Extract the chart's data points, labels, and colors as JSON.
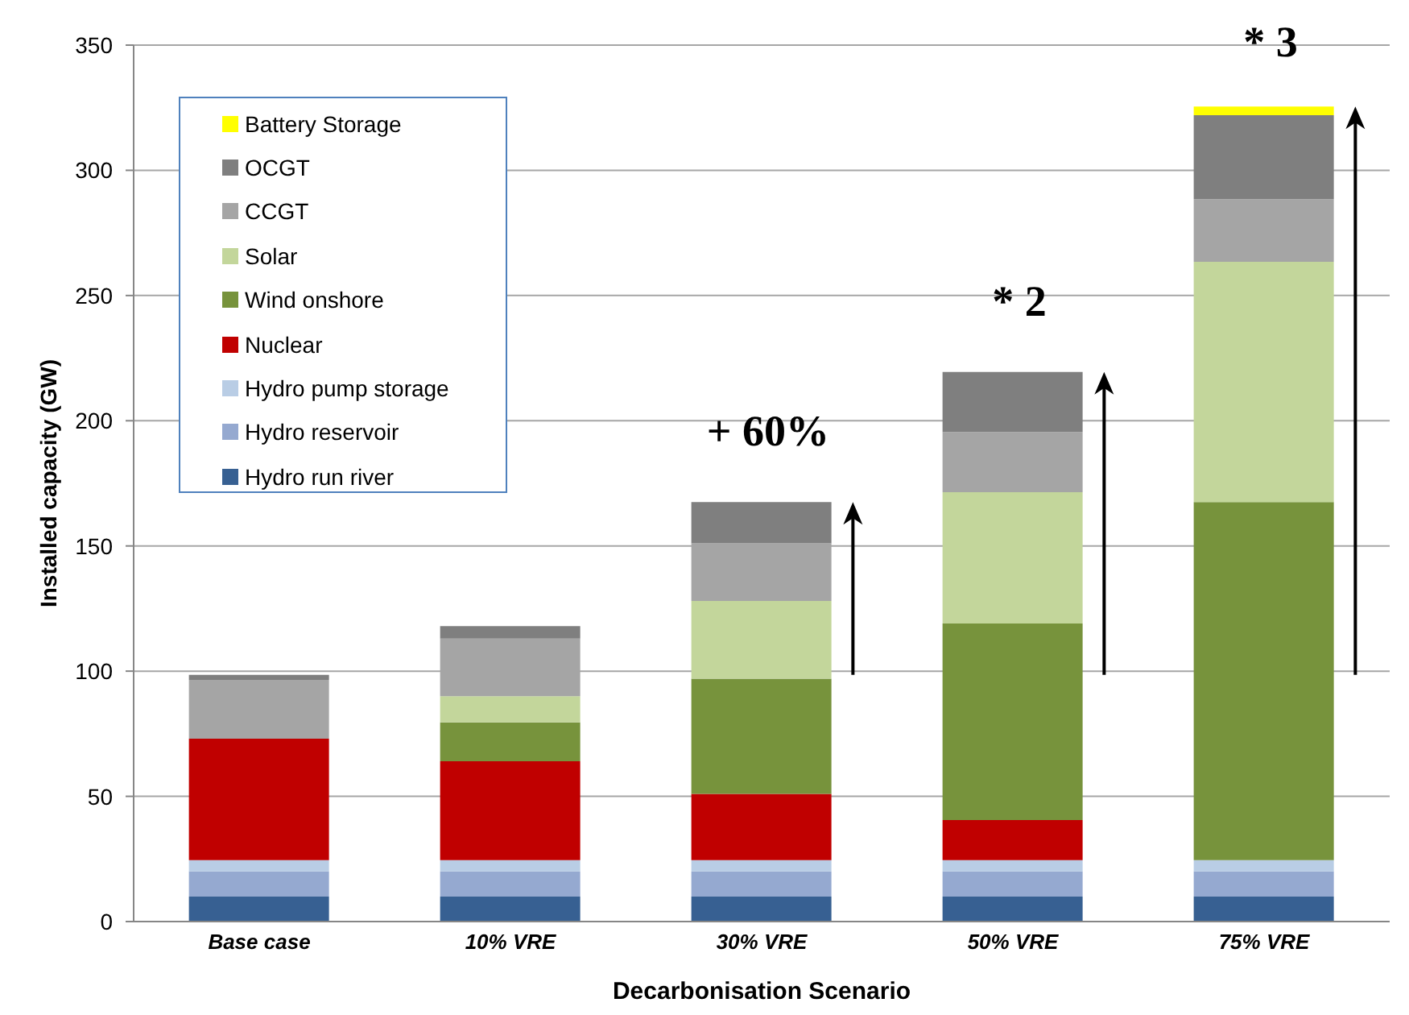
{
  "chart_data": {
    "type": "bar",
    "stacked": true,
    "xlabel": "Decarbonisation Scenario",
    "ylabel": "Installed capacity (GW)",
    "categories": [
      "Base case",
      "10% VRE",
      "30% VRE",
      "50% VRE",
      "75% VRE"
    ],
    "series": [
      {
        "name": "Hydro run river",
        "color": "#376092",
        "values": [
          10,
          10,
          10,
          10,
          10
        ]
      },
      {
        "name": "Hydro reservoir",
        "color": "#95a9d0",
        "values": [
          10,
          10,
          10,
          10,
          10
        ]
      },
      {
        "name": "Hydro pump storage",
        "color": "#b9cde5",
        "values": [
          4.5,
          4.5,
          4.5,
          4.5,
          4.5
        ]
      },
      {
        "name": "Nuclear",
        "color": "#c00000",
        "values": [
          48.5,
          39.5,
          26.5,
          16,
          0
        ]
      },
      {
        "name": "Wind onshore",
        "color": "#77933c",
        "values": [
          0,
          15.5,
          46,
          78.5,
          143
        ]
      },
      {
        "name": "Solar",
        "color": "#c3d69b",
        "values": [
          0,
          10.5,
          31,
          52.5,
          96
        ]
      },
      {
        "name": "CCGT",
        "color": "#a5a5a5",
        "values": [
          23.5,
          23,
          23,
          24,
          25
        ]
      },
      {
        "name": "OCGT",
        "color": "#7f7f7f",
        "values": [
          2,
          5,
          16.5,
          24,
          33.5
        ]
      },
      {
        "name": "Battery Storage",
        "color": "#ffff00",
        "values": [
          0,
          0,
          0,
          0,
          3.5
        ]
      }
    ],
    "ylim": [
      0,
      350
    ],
    "yticks": [
      0,
      50,
      100,
      150,
      200,
      250,
      300,
      350
    ],
    "grid": "y",
    "legend": "top left",
    "annotations": [
      "+ 60%",
      "* 2",
      "* 3"
    ]
  }
}
